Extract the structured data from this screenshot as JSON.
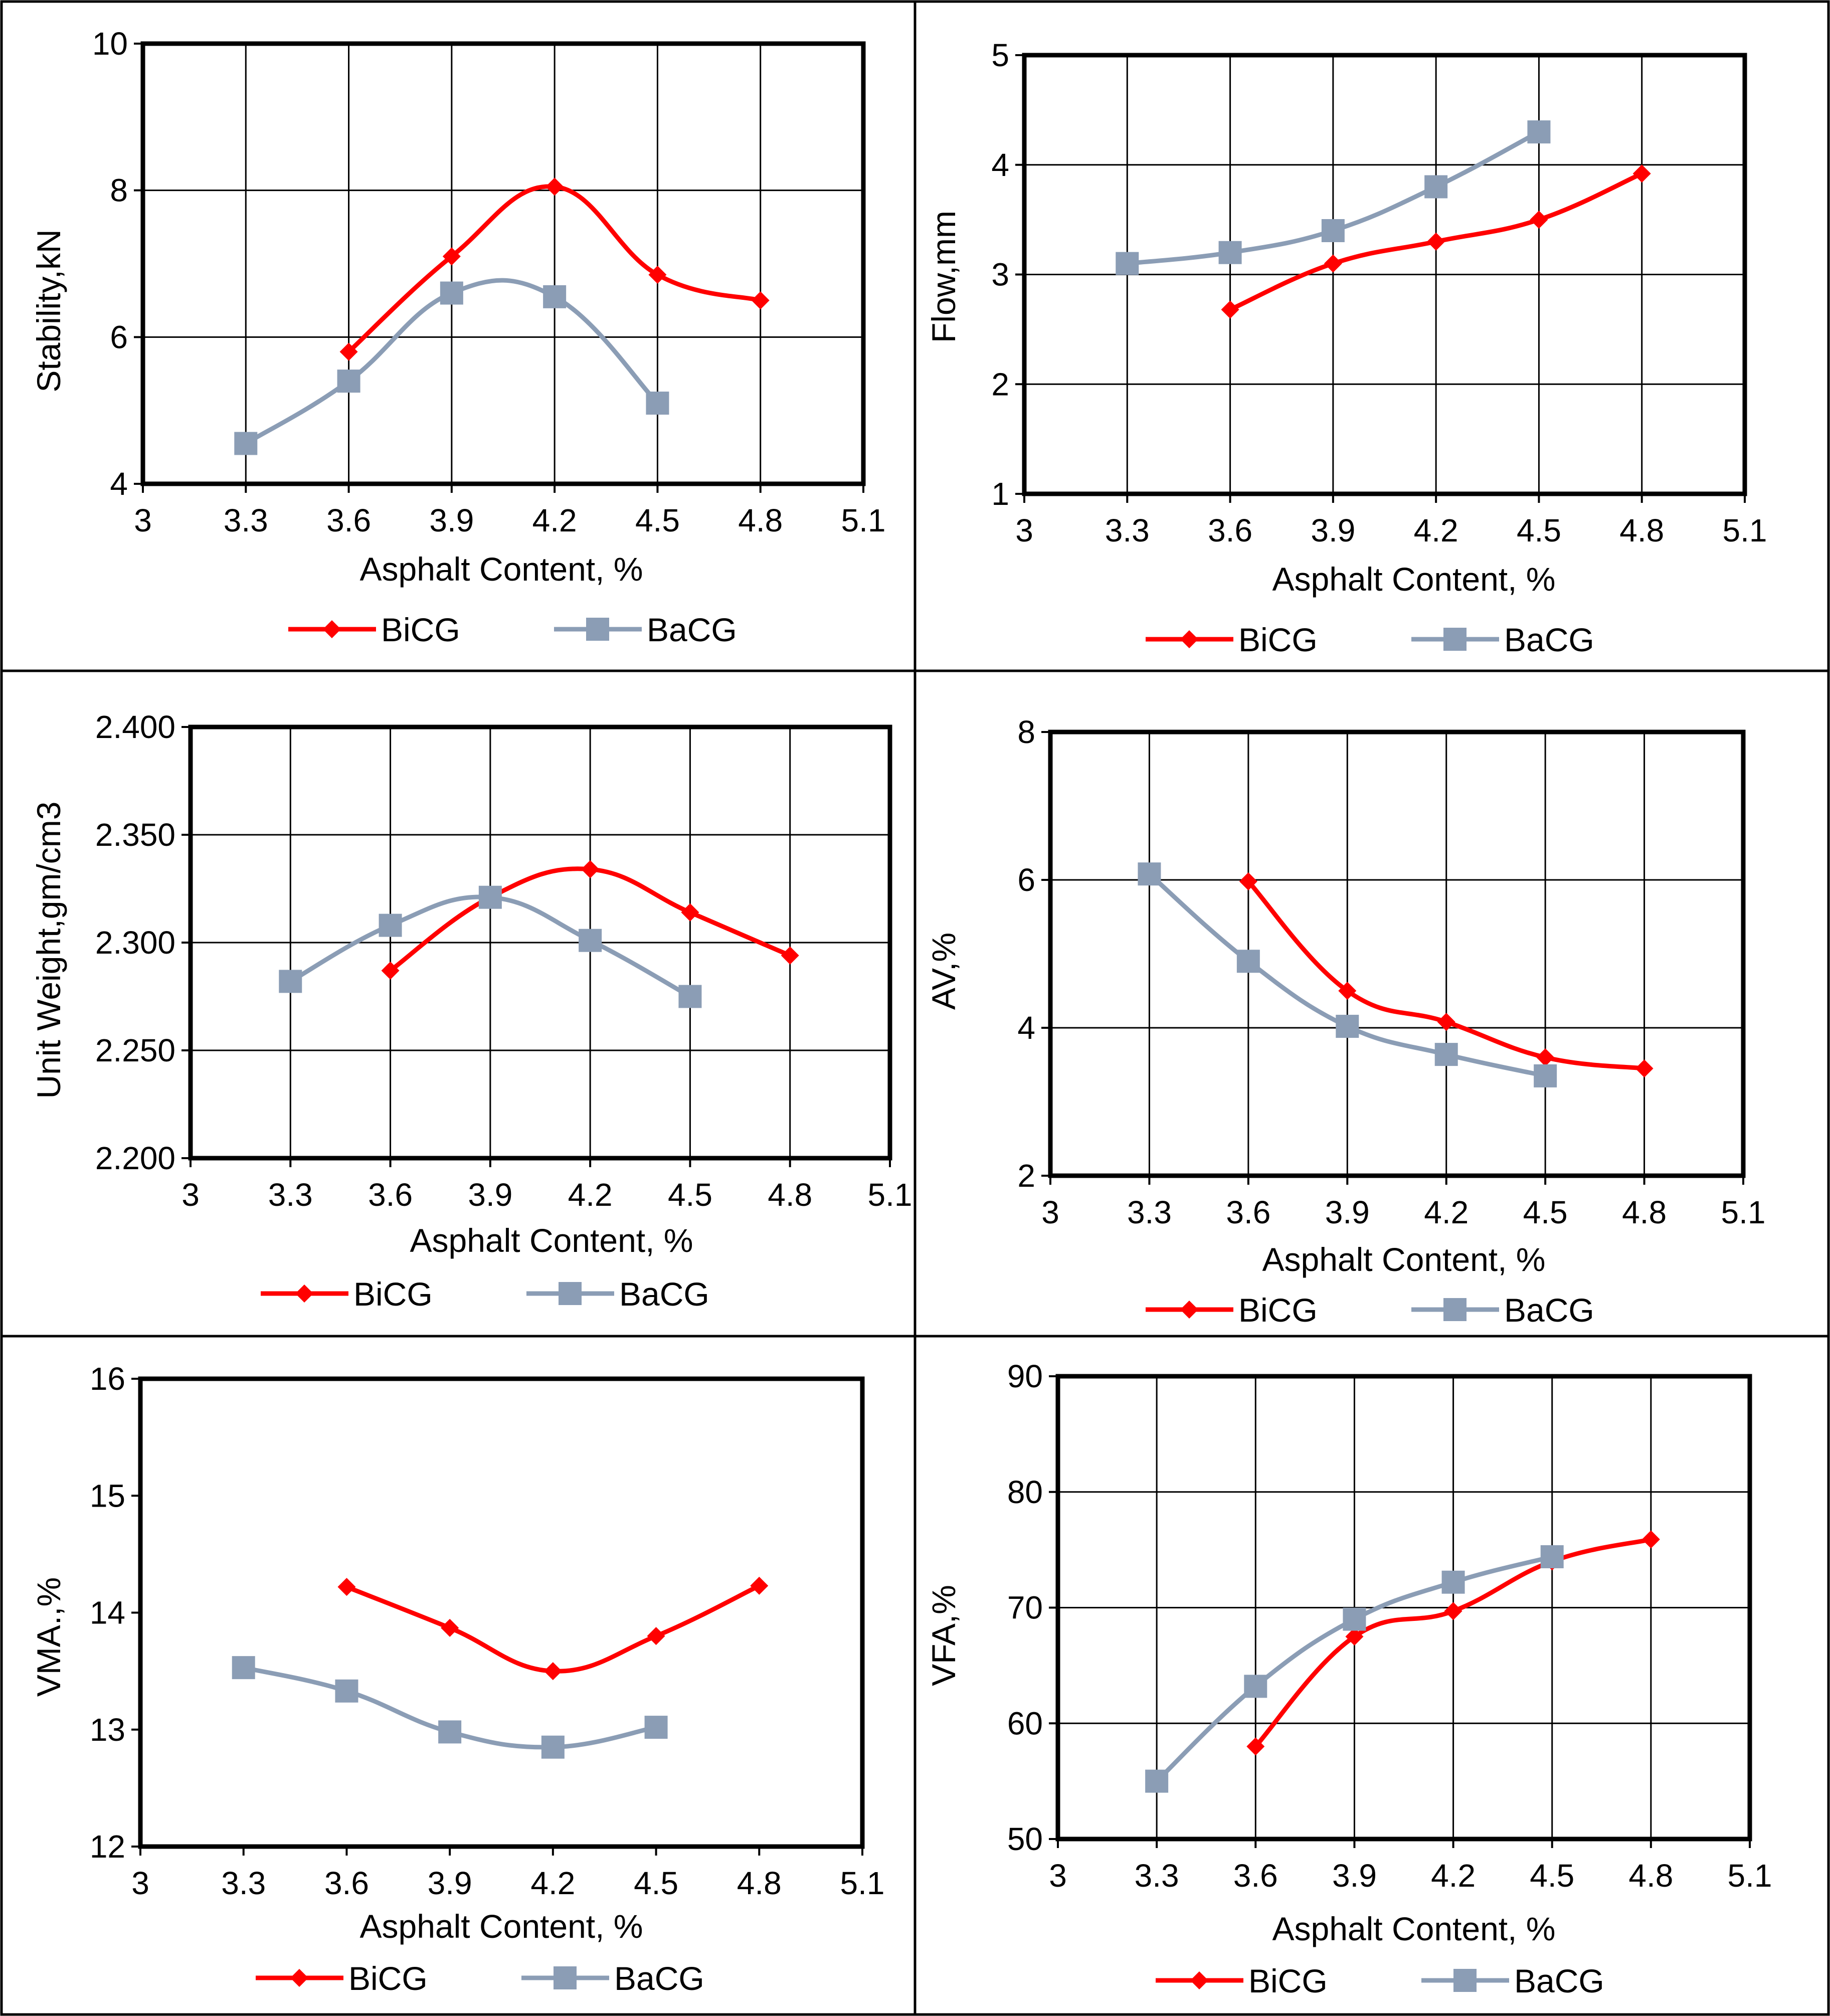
{
  "colors": {
    "bicg": "#ff0000",
    "bacg": "#8b9db5",
    "frame": "#000000",
    "grid": "#000000"
  },
  "chart_data": [
    {
      "type": "line",
      "ylabel": "Stability,kN",
      "xlabel": "Asphalt Content, %",
      "xlim": [
        3,
        5.1
      ],
      "x_ticks": [
        "3",
        "3.3",
        "3.6",
        "3.9",
        "4.2",
        "4.5",
        "4.8",
        "5.1"
      ],
      "ylim": [
        4,
        10
      ],
      "y_ticks": [
        "4",
        "6",
        "8",
        "10"
      ],
      "grid": true,
      "legend_position": "bottom",
      "series": [
        {
          "name": "BiCG",
          "marker": "diamond",
          "x": [
            3.6,
            3.9,
            4.2,
            4.5,
            4.8
          ],
          "values": [
            5.8,
            7.1,
            8.05,
            6.85,
            6.5
          ]
        },
        {
          "name": "BaCG",
          "marker": "square",
          "x": [
            3.3,
            3.6,
            3.9,
            4.2,
            4.5
          ],
          "values": [
            4.55,
            5.4,
            6.6,
            6.55,
            5.1
          ]
        }
      ]
    },
    {
      "type": "line",
      "ylabel": "Flow,mm",
      "xlabel": "Asphalt Content, %",
      "xlim": [
        3,
        5.1
      ],
      "x_ticks": [
        "3",
        "3.3",
        "3.6",
        "3.9",
        "4.2",
        "4.5",
        "4.8",
        "5.1"
      ],
      "ylim": [
        1,
        5
      ],
      "y_ticks": [
        "1",
        "2",
        "3",
        "4",
        "5"
      ],
      "grid": true,
      "legend_position": "bottom",
      "series": [
        {
          "name": "BiCG",
          "marker": "diamond",
          "x": [
            3.6,
            3.9,
            4.2,
            4.5,
            4.8
          ],
          "values": [
            2.68,
            3.1,
            3.3,
            3.5,
            3.92
          ]
        },
        {
          "name": "BaCG",
          "marker": "square",
          "x": [
            3.3,
            3.6,
            3.9,
            4.2,
            4.5
          ],
          "values": [
            3.1,
            3.2,
            3.4,
            3.8,
            4.3
          ]
        }
      ]
    },
    {
      "type": "line",
      "ylabel": "Unit Weight,gm/cm3",
      "xlabel": "Asphalt Content, %",
      "xlim": [
        3,
        5.1
      ],
      "x_ticks": [
        "3",
        "3.3",
        "3.6",
        "3.9",
        "4.2",
        "4.5",
        "4.8",
        "5.1"
      ],
      "ylim": [
        2.2,
        2.4
      ],
      "y_ticks": [
        "2.200",
        "2.250",
        "2.300",
        "2.350",
        "2.400"
      ],
      "grid": true,
      "legend_position": "bottom",
      "series": [
        {
          "name": "BiCG",
          "marker": "diamond",
          "x": [
            3.6,
            3.9,
            4.2,
            4.5,
            4.8
          ],
          "values": [
            2.287,
            2.321,
            2.334,
            2.314,
            2.294
          ]
        },
        {
          "name": "BaCG",
          "marker": "square",
          "x": [
            3.3,
            3.6,
            3.9,
            4.2,
            4.5
          ],
          "values": [
            2.282,
            2.308,
            2.321,
            2.301,
            2.275
          ]
        }
      ]
    },
    {
      "type": "line",
      "ylabel": "AV,%",
      "xlabel": "Asphalt Content, %",
      "xlim": [
        3,
        5.1
      ],
      "x_ticks": [
        "3",
        "3.3",
        "3.6",
        "3.9",
        "4.2",
        "4.5",
        "4.8",
        "5.1"
      ],
      "ylim": [
        2,
        8
      ],
      "y_ticks": [
        "2",
        "4",
        "6",
        "8"
      ],
      "grid": true,
      "legend_position": "bottom",
      "series": [
        {
          "name": "BiCG",
          "marker": "diamond",
          "x": [
            3.6,
            3.9,
            4.2,
            4.5,
            4.8
          ],
          "values": [
            5.98,
            4.5,
            4.08,
            3.6,
            3.45
          ]
        },
        {
          "name": "BaCG",
          "marker": "square",
          "x": [
            3.3,
            3.6,
            3.9,
            4.2,
            4.5
          ],
          "values": [
            6.08,
            4.9,
            4.02,
            3.64,
            3.35
          ]
        }
      ]
    },
    {
      "type": "line",
      "ylabel": "VMA.,%",
      "xlabel": "Asphalt Content, %",
      "xlim": [
        3,
        5.1
      ],
      "x_ticks": [
        "3",
        "3.3",
        "3.6",
        "3.9",
        "4.2",
        "4.5",
        "4.8",
        "5.1"
      ],
      "ylim": [
        12,
        16
      ],
      "y_ticks": [
        "12",
        "13",
        "14",
        "15",
        "16"
      ],
      "grid": false,
      "legend_position": "bottom",
      "series": [
        {
          "name": "BiCG",
          "marker": "diamond",
          "x": [
            3.6,
            3.9,
            4.2,
            4.5,
            4.8
          ],
          "values": [
            14.22,
            13.87,
            13.5,
            13.8,
            14.23
          ]
        },
        {
          "name": "BaCG",
          "marker": "square",
          "x": [
            3.3,
            3.6,
            3.9,
            4.2,
            4.5
          ],
          "values": [
            13.53,
            13.33,
            12.98,
            12.85,
            13.02
          ]
        }
      ]
    },
    {
      "type": "line",
      "ylabel": "VFA,%",
      "xlabel": "Asphalt Content, %",
      "xlim": [
        3,
        5.1
      ],
      "x_ticks": [
        "3",
        "3.3",
        "3.6",
        "3.9",
        "4.2",
        "4.5",
        "4.8",
        "5.1"
      ],
      "ylim": [
        50,
        90
      ],
      "y_ticks": [
        "50",
        "60",
        "70",
        "80",
        "90"
      ],
      "grid": true,
      "legend_position": "bottom",
      "series": [
        {
          "name": "BiCG",
          "marker": "diamond",
          "x": [
            3.6,
            3.9,
            4.2,
            4.5,
            4.8
          ],
          "values": [
            58,
            67.5,
            69.7,
            74,
            75.9
          ]
        },
        {
          "name": "BaCG",
          "marker": "square",
          "x": [
            3.3,
            3.6,
            3.9,
            4.2,
            4.5
          ],
          "values": [
            55,
            63.2,
            69,
            72.2,
            74.4
          ]
        }
      ]
    }
  ]
}
